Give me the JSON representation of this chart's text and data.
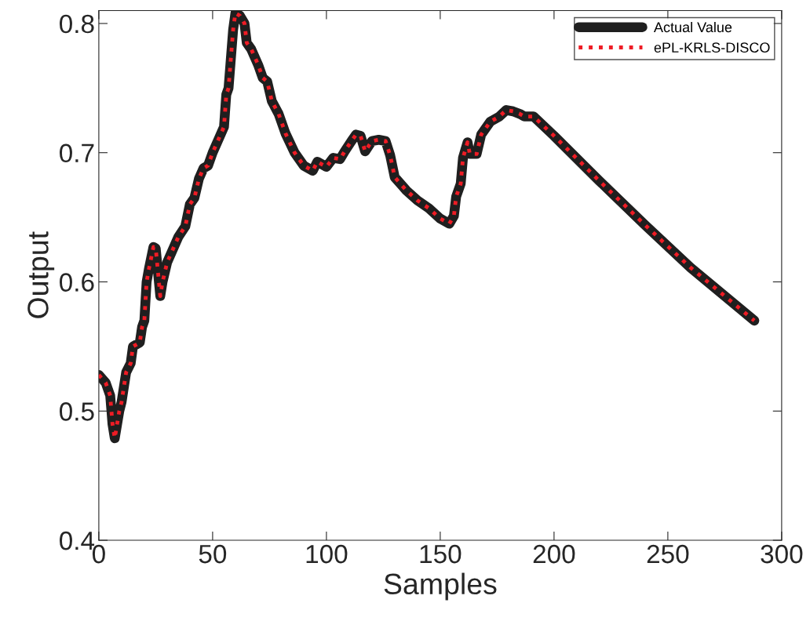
{
  "chart_data": {
    "type": "line",
    "xlabel": "Samples",
    "ylabel": "Output",
    "xlim": [
      0,
      300
    ],
    "ylim": [
      0.4,
      0.81
    ],
    "xticks": [
      0,
      50,
      100,
      150,
      200,
      250,
      300
    ],
    "yticks": [
      0.4,
      0.5,
      0.6,
      0.7,
      0.8
    ],
    "legend": "top right",
    "grid": false,
    "x": [
      0,
      3,
      5,
      6,
      7,
      9,
      10,
      12,
      14,
      15,
      18,
      19,
      20,
      21,
      22,
      24,
      25,
      27,
      28,
      30,
      35,
      38,
      40,
      42,
      44,
      46,
      48,
      50,
      53,
      55,
      56,
      57,
      59,
      60,
      62,
      64,
      65,
      67,
      70,
      72,
      74,
      76,
      79,
      82,
      86,
      90,
      94,
      96,
      98,
      100,
      103,
      106,
      108,
      111,
      113,
      115,
      117,
      120,
      123,
      126,
      128,
      130,
      135,
      140,
      145,
      150,
      154,
      156,
      157,
      159,
      160,
      162,
      163,
      166,
      168,
      172,
      176,
      179,
      182,
      185,
      187,
      191,
      200,
      220,
      240,
      260,
      288
    ],
    "series": [
      {
        "name": "Actual Value",
        "color": "#1f1f1f",
        "line_style": "solid",
        "values": [
          0.528,
          0.522,
          0.512,
          0.49,
          0.479,
          0.5,
          0.507,
          0.53,
          0.537,
          0.55,
          0.553,
          0.565,
          0.57,
          0.6,
          0.61,
          0.627,
          0.626,
          0.589,
          0.6,
          0.615,
          0.635,
          0.643,
          0.66,
          0.665,
          0.68,
          0.688,
          0.69,
          0.7,
          0.712,
          0.72,
          0.745,
          0.75,
          0.795,
          0.808,
          0.806,
          0.8,
          0.785,
          0.78,
          0.768,
          0.758,
          0.755,
          0.74,
          0.73,
          0.715,
          0.7,
          0.69,
          0.686,
          0.693,
          0.691,
          0.689,
          0.696,
          0.695,
          0.701,
          0.709,
          0.714,
          0.713,
          0.701,
          0.709,
          0.71,
          0.709,
          0.698,
          0.681,
          0.671,
          0.663,
          0.657,
          0.649,
          0.645,
          0.651,
          0.666,
          0.676,
          0.696,
          0.708,
          0.699,
          0.699,
          0.714,
          0.724,
          0.728,
          0.733,
          0.732,
          0.73,
          0.728,
          0.728,
          0.713,
          0.678,
          0.644,
          0.611,
          0.57
        ]
      },
      {
        "name": "ePL-KRLS-DISCO",
        "color": "#ee1c25",
        "line_style": "dotted",
        "values": [
          0.528,
          0.522,
          0.512,
          0.49,
          0.479,
          0.5,
          0.507,
          0.53,
          0.537,
          0.55,
          0.553,
          0.565,
          0.57,
          0.6,
          0.61,
          0.627,
          0.626,
          0.589,
          0.6,
          0.615,
          0.635,
          0.643,
          0.66,
          0.665,
          0.68,
          0.688,
          0.69,
          0.7,
          0.712,
          0.72,
          0.745,
          0.75,
          0.795,
          0.808,
          0.806,
          0.8,
          0.785,
          0.78,
          0.768,
          0.758,
          0.755,
          0.74,
          0.73,
          0.715,
          0.7,
          0.69,
          0.686,
          0.693,
          0.691,
          0.689,
          0.696,
          0.695,
          0.701,
          0.709,
          0.714,
          0.713,
          0.701,
          0.709,
          0.71,
          0.709,
          0.698,
          0.681,
          0.671,
          0.663,
          0.657,
          0.649,
          0.645,
          0.651,
          0.666,
          0.676,
          0.696,
          0.708,
          0.699,
          0.699,
          0.714,
          0.724,
          0.728,
          0.733,
          0.732,
          0.73,
          0.728,
          0.728,
          0.713,
          0.678,
          0.644,
          0.611,
          0.57
        ]
      }
    ]
  }
}
